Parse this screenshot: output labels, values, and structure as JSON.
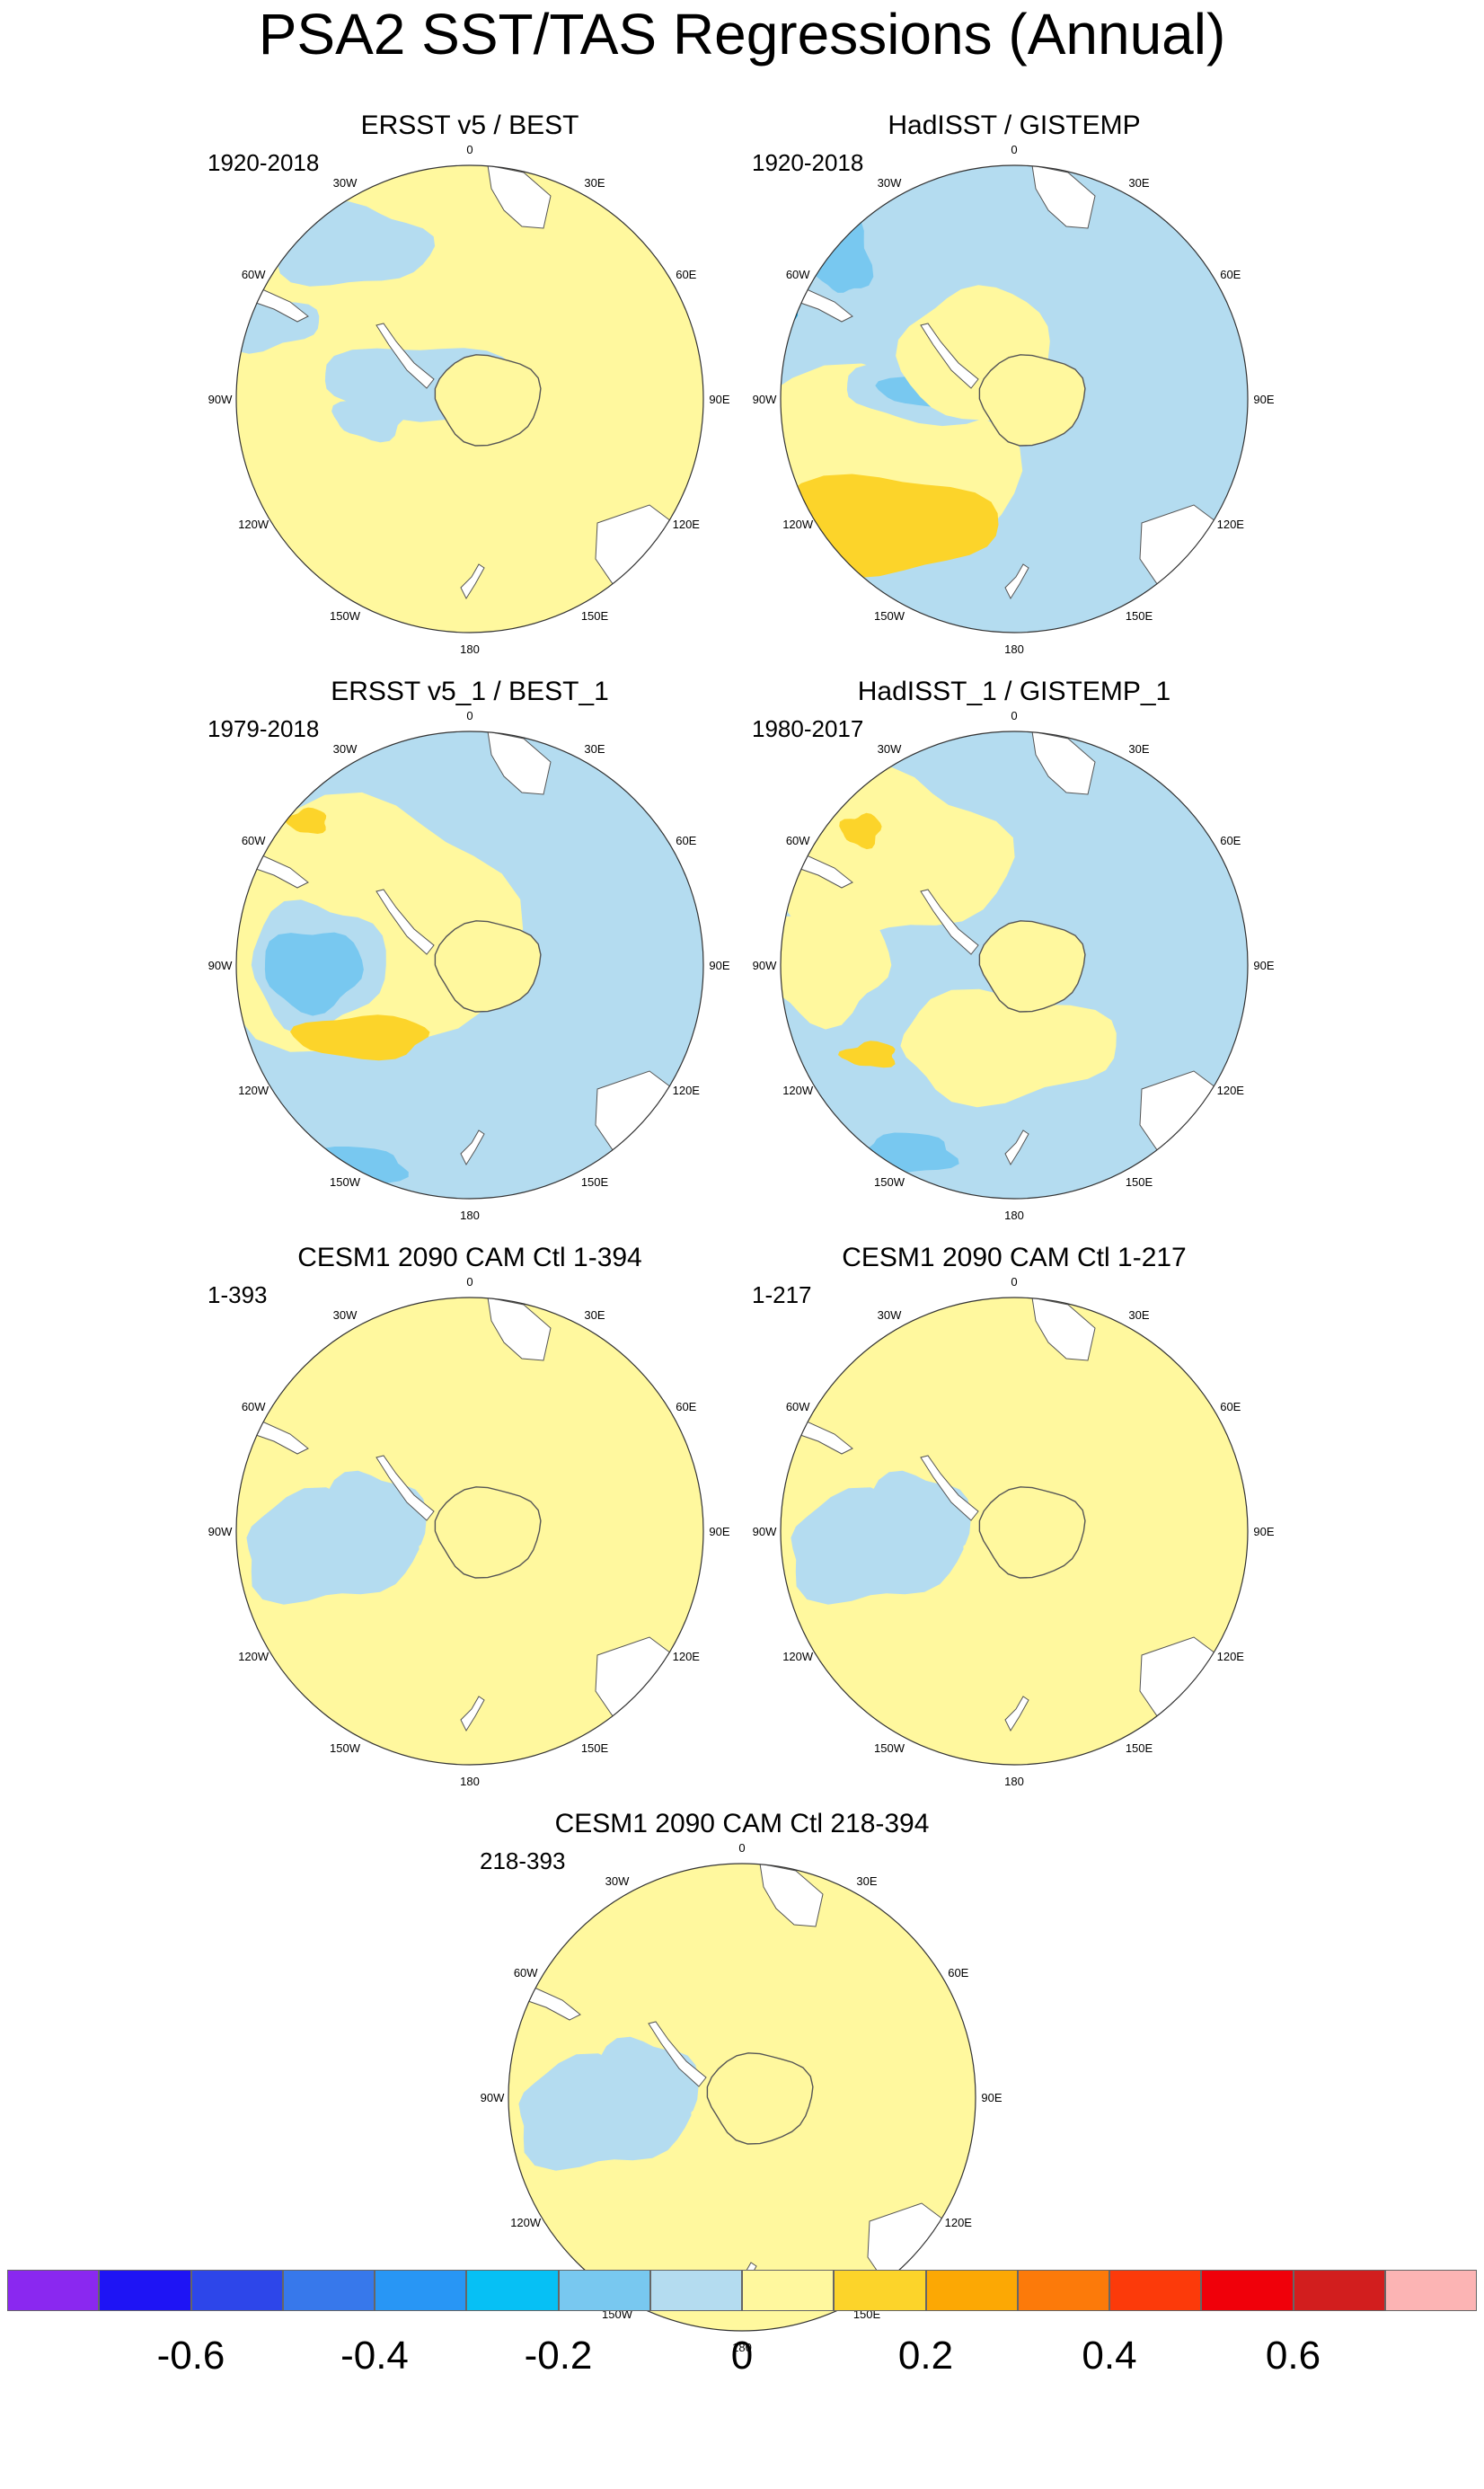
{
  "title": "PSA2 SST/TAS Regressions (Annual)",
  "colors": {
    "land": "#ffffff",
    "coast": "#555555",
    "pos_weak": "#fff89e",
    "pos_mid": "#fcd42a",
    "neg_weak": "#b4dcf0",
    "neg_mid": "#78c8f0",
    "neg_strong": "#0aaaf0"
  },
  "lon_labels": [
    "0",
    "30E",
    "60E",
    "90E",
    "120E",
    "150E",
    "180",
    "150W",
    "120W",
    "90W",
    "60W",
    "30W"
  ],
  "panels": [
    {
      "title": "ERSST v5 / BEST",
      "period": "1920-2018",
      "style": "ersst_long"
    },
    {
      "title": "HadISST / GISTEMP",
      "period": "1920-2018",
      "style": "hadisst_long"
    },
    {
      "title": "ERSST v5_1 / BEST_1",
      "period": "1979-2018",
      "style": "ersst_short"
    },
    {
      "title": "HadISST_1 / GISTEMP_1",
      "period": "1980-2017",
      "style": "hadisst_short"
    },
    {
      "title": "CESM1 2090 CAM Ctl 1-394",
      "period": "1-393",
      "style": "cesm"
    },
    {
      "title": "CESM1 2090 CAM Ctl 1-217",
      "period": "1-217",
      "style": "cesm"
    },
    {
      "title": "CESM1 2090 CAM Ctl 218-394",
      "period": "218-393",
      "style": "cesm"
    }
  ],
  "colorbar": {
    "colors": [
      "#8a28f0",
      "#1e14f5",
      "#2d46ea",
      "#3778eb",
      "#2896f5",
      "#06c0f5",
      "#78c8f0",
      "#b4dcf0",
      "#fff89e",
      "#fcd42a",
      "#fca804",
      "#fc7a0a",
      "#fc3a0a",
      "#f0000a",
      "#d21e1e",
      "#fcb4b4"
    ],
    "labels": [
      "-0.6",
      "-0.4",
      "-0.2",
      "0",
      "0.2",
      "0.4",
      "0.6"
    ]
  }
}
